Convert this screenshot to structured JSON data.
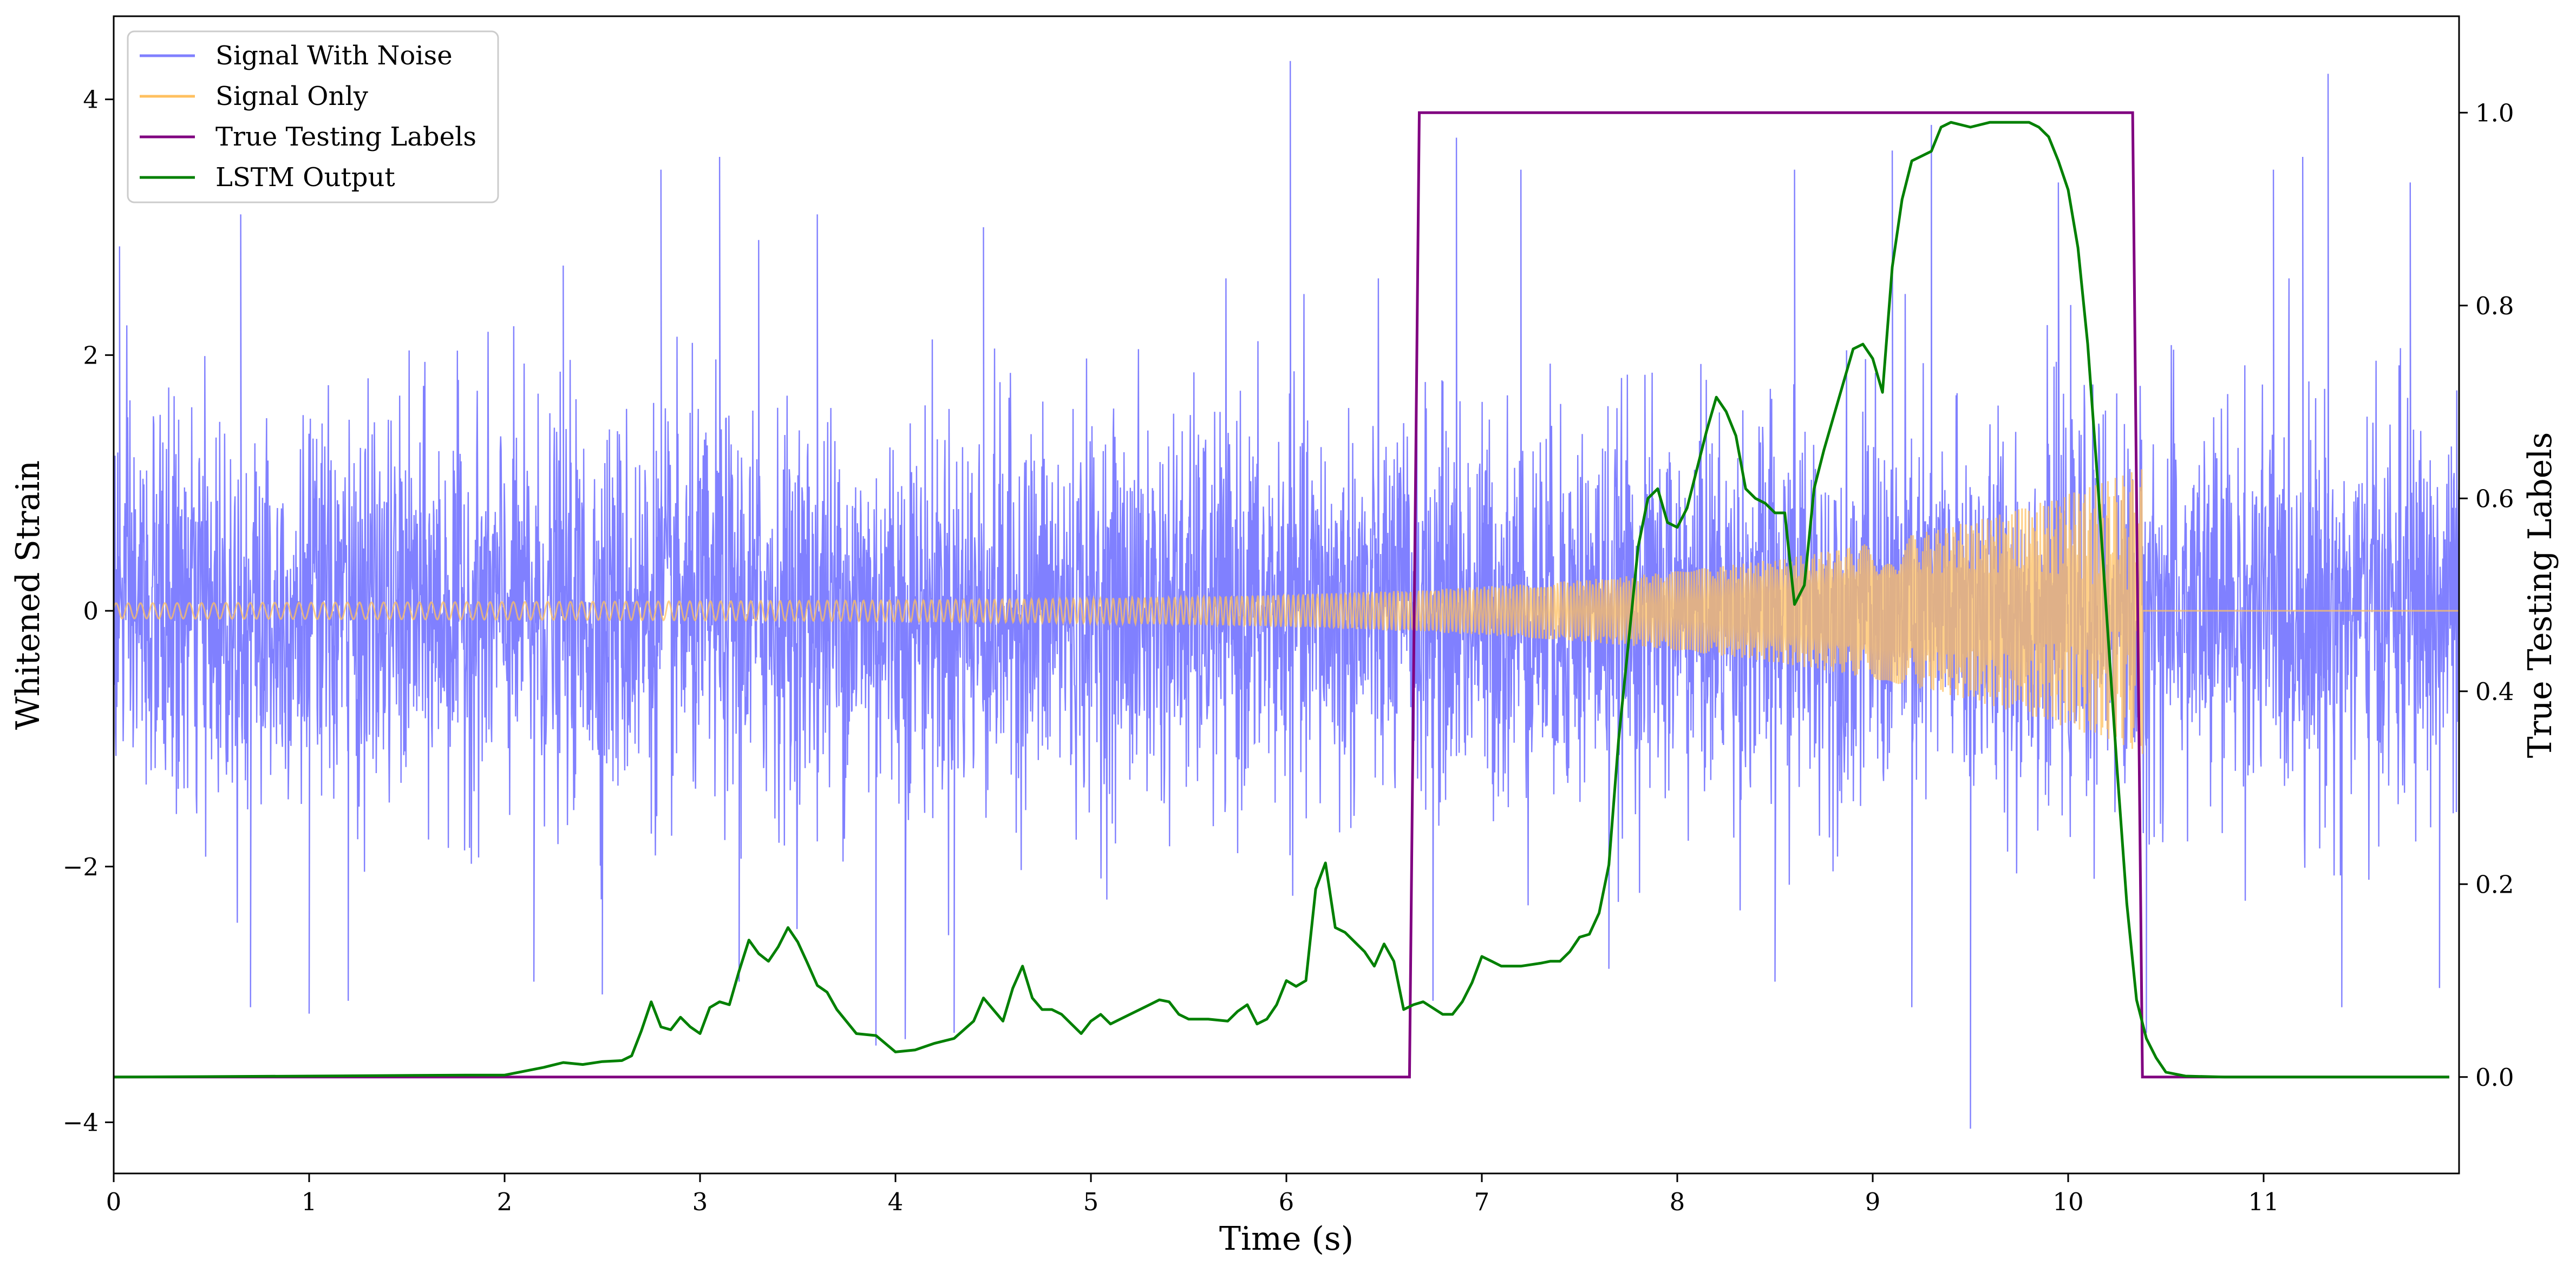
{
  "chart_data": {
    "type": "line",
    "xlabel": "Time (s)",
    "ylabel": "Whitened Strain",
    "y2label": "True Testing Labels",
    "xlim": [
      0,
      12
    ],
    "ylim": [
      -4.4,
      4.65
    ],
    "y2lim": [
      -0.1,
      1.1
    ],
    "xticks": [
      0,
      1,
      2,
      3,
      4,
      5,
      6,
      7,
      8,
      9,
      10,
      11
    ],
    "yticks": [
      -4,
      -2,
      0,
      2,
      4
    ],
    "y2ticks": [
      0.0,
      0.2,
      0.4,
      0.6,
      0.8,
      1.0
    ],
    "ytick_labels": [
      "−4",
      "−2",
      "0",
      "2",
      "4"
    ],
    "y2tick_labels": [
      "0.0",
      "0.2",
      "0.4",
      "0.6",
      "0.8",
      "1.0"
    ],
    "grid": false,
    "legend_position": "top-left",
    "series": [
      {
        "name": "Signal With Noise",
        "axis": "left",
        "color": "#8080ff",
        "description_values": {
          "x_range": [
            0,
            12
          ],
          "noise_std": 0.75,
          "approx_min": -4.05,
          "approx_max": 4.3
        },
        "spikes": [
          {
            "x": 0.03,
            "y": 2.85
          },
          {
            "x": 0.65,
            "y": 3.1
          },
          {
            "x": 2.3,
            "y": 2.7
          },
          {
            "x": 2.8,
            "y": 3.45
          },
          {
            "x": 3.1,
            "y": 3.55
          },
          {
            "x": 3.3,
            "y": 2.9
          },
          {
            "x": 3.6,
            "y": 3.1
          },
          {
            "x": 4.45,
            "y": 3.0
          },
          {
            "x": 6.02,
            "y": 4.3
          },
          {
            "x": 6.87,
            "y": 3.7
          },
          {
            "x": 7.2,
            "y": 3.45
          },
          {
            "x": 8.6,
            "y": 3.45
          },
          {
            "x": 9.1,
            "y": 3.6
          },
          {
            "x": 9.3,
            "y": 3.8
          },
          {
            "x": 9.95,
            "y": 3.35
          },
          {
            "x": 11.05,
            "y": 3.45
          },
          {
            "x": 11.2,
            "y": 3.55
          },
          {
            "x": 11.33,
            "y": 4.2
          },
          {
            "x": 11.75,
            "y": 3.35
          },
          {
            "x": 0.7,
            "y": -3.1
          },
          {
            "x": 1.0,
            "y": -3.15
          },
          {
            "x": 1.2,
            "y": -3.05
          },
          {
            "x": 2.15,
            "y": -2.9
          },
          {
            "x": 2.5,
            "y": -3.0
          },
          {
            "x": 3.2,
            "y": -2.9
          },
          {
            "x": 3.9,
            "y": -3.4
          },
          {
            "x": 4.05,
            "y": -3.35
          },
          {
            "x": 4.3,
            "y": -3.3
          },
          {
            "x": 6.75,
            "y": -3.05
          },
          {
            "x": 7.65,
            "y": -2.8
          },
          {
            "x": 8.5,
            "y": -2.9
          },
          {
            "x": 9.2,
            "y": -3.1
          },
          {
            "x": 9.5,
            "y": -4.05
          },
          {
            "x": 10.4,
            "y": -3.3
          },
          {
            "x": 11.4,
            "y": -3.1
          },
          {
            "x": 11.9,
            "y": -2.95
          }
        ]
      },
      {
        "name": "Signal Only",
        "axis": "left",
        "color": "#ffc060",
        "chirp": {
          "x_start": 0,
          "x_end": 10.38,
          "amp_start": 0.06,
          "amp_end": 1.07,
          "flat_after": 0
        }
      },
      {
        "name": "True Testing Labels",
        "axis": "right",
        "color": "#800080",
        "x": [
          0,
          6.63,
          6.68,
          10.33,
          10.38,
          11.95
        ],
        "values": [
          0,
          0,
          1,
          1,
          0,
          0
        ]
      },
      {
        "name": "LSTM Output",
        "axis": "right",
        "color": "#008000",
        "x": [
          0,
          1.0,
          1.8,
          2.0,
          2.2,
          2.3,
          2.4,
          2.5,
          2.6,
          2.65,
          2.7,
          2.75,
          2.8,
          2.85,
          2.9,
          2.95,
          3.0,
          3.05,
          3.1,
          3.15,
          3.2,
          3.25,
          3.3,
          3.35,
          3.4,
          3.45,
          3.5,
          3.55,
          3.6,
          3.65,
          3.7,
          3.8,
          3.9,
          4.0,
          4.1,
          4.2,
          4.3,
          4.4,
          4.45,
          4.5,
          4.55,
          4.6,
          4.65,
          4.7,
          4.75,
          4.8,
          4.85,
          4.9,
          4.95,
          5.0,
          5.05,
          5.1,
          5.15,
          5.2,
          5.25,
          5.3,
          5.35,
          5.4,
          5.45,
          5.5,
          5.6,
          5.7,
          5.75,
          5.8,
          5.85,
          5.9,
          5.95,
          6.0,
          6.05,
          6.1,
          6.15,
          6.2,
          6.25,
          6.3,
          6.35,
          6.4,
          6.45,
          6.5,
          6.55,
          6.6,
          6.65,
          6.7,
          6.8,
          6.85,
          6.9,
          6.95,
          7.0,
          7.05,
          7.1,
          7.2,
          7.3,
          7.35,
          7.4,
          7.45,
          7.5,
          7.55,
          7.6,
          7.65,
          7.7,
          7.75,
          7.8,
          7.85,
          7.9,
          7.95,
          8.0,
          8.05,
          8.1,
          8.15,
          8.2,
          8.25,
          8.3,
          8.35,
          8.4,
          8.45,
          8.5,
          8.55,
          8.6,
          8.65,
          8.7,
          8.75,
          8.8,
          8.85,
          8.9,
          8.95,
          9.0,
          9.05,
          9.1,
          9.15,
          9.2,
          9.25,
          9.3,
          9.35,
          9.4,
          9.5,
          9.6,
          9.7,
          9.75,
          9.8,
          9.85,
          9.9,
          9.95,
          10.0,
          10.05,
          10.1,
          10.15,
          10.2,
          10.25,
          10.3,
          10.35,
          10.4,
          10.45,
          10.5,
          10.6,
          10.8,
          11.95
        ],
        "values": [
          0,
          0.001,
          0.002,
          0.002,
          0.01,
          0.015,
          0.013,
          0.016,
          0.017,
          0.022,
          0.048,
          0.078,
          0.052,
          0.049,
          0.062,
          0.052,
          0.045,
          0.072,
          0.078,
          0.075,
          0.11,
          0.142,
          0.128,
          0.12,
          0.135,
          0.155,
          0.14,
          0.118,
          0.095,
          0.088,
          0.07,
          0.045,
          0.043,
          0.026,
          0.028,
          0.035,
          0.04,
          0.058,
          0.082,
          0.07,
          0.058,
          0.092,
          0.115,
          0.082,
          0.07,
          0.07,
          0.065,
          0.055,
          0.045,
          0.058,
          0.065,
          0.055,
          0.06,
          0.065,
          0.07,
          0.075,
          0.08,
          0.078,
          0.065,
          0.06,
          0.06,
          0.058,
          0.068,
          0.075,
          0.055,
          0.06,
          0.075,
          0.1,
          0.094,
          0.1,
          0.195,
          0.222,
          0.155,
          0.15,
          0.14,
          0.13,
          0.115,
          0.138,
          0.12,
          0.07,
          0.075,
          0.078,
          0.065,
          0.065,
          0.078,
          0.098,
          0.125,
          0.12,
          0.115,
          0.115,
          0.118,
          0.12,
          0.12,
          0.13,
          0.145,
          0.148,
          0.17,
          0.22,
          0.35,
          0.45,
          0.55,
          0.6,
          0.61,
          0.575,
          0.57,
          0.59,
          0.63,
          0.67,
          0.705,
          0.69,
          0.665,
          0.61,
          0.6,
          0.595,
          0.585,
          0.585,
          0.49,
          0.51,
          0.61,
          0.65,
          0.685,
          0.72,
          0.755,
          0.76,
          0.745,
          0.71,
          0.84,
          0.91,
          0.95,
          0.955,
          0.96,
          0.985,
          0.99,
          0.985,
          0.99,
          0.99,
          0.99,
          0.99,
          0.985,
          0.975,
          0.95,
          0.92,
          0.86,
          0.76,
          0.62,
          0.47,
          0.32,
          0.18,
          0.08,
          0.04,
          0.02,
          0.005,
          0.001,
          0.0,
          0.0
        ]
      }
    ]
  }
}
